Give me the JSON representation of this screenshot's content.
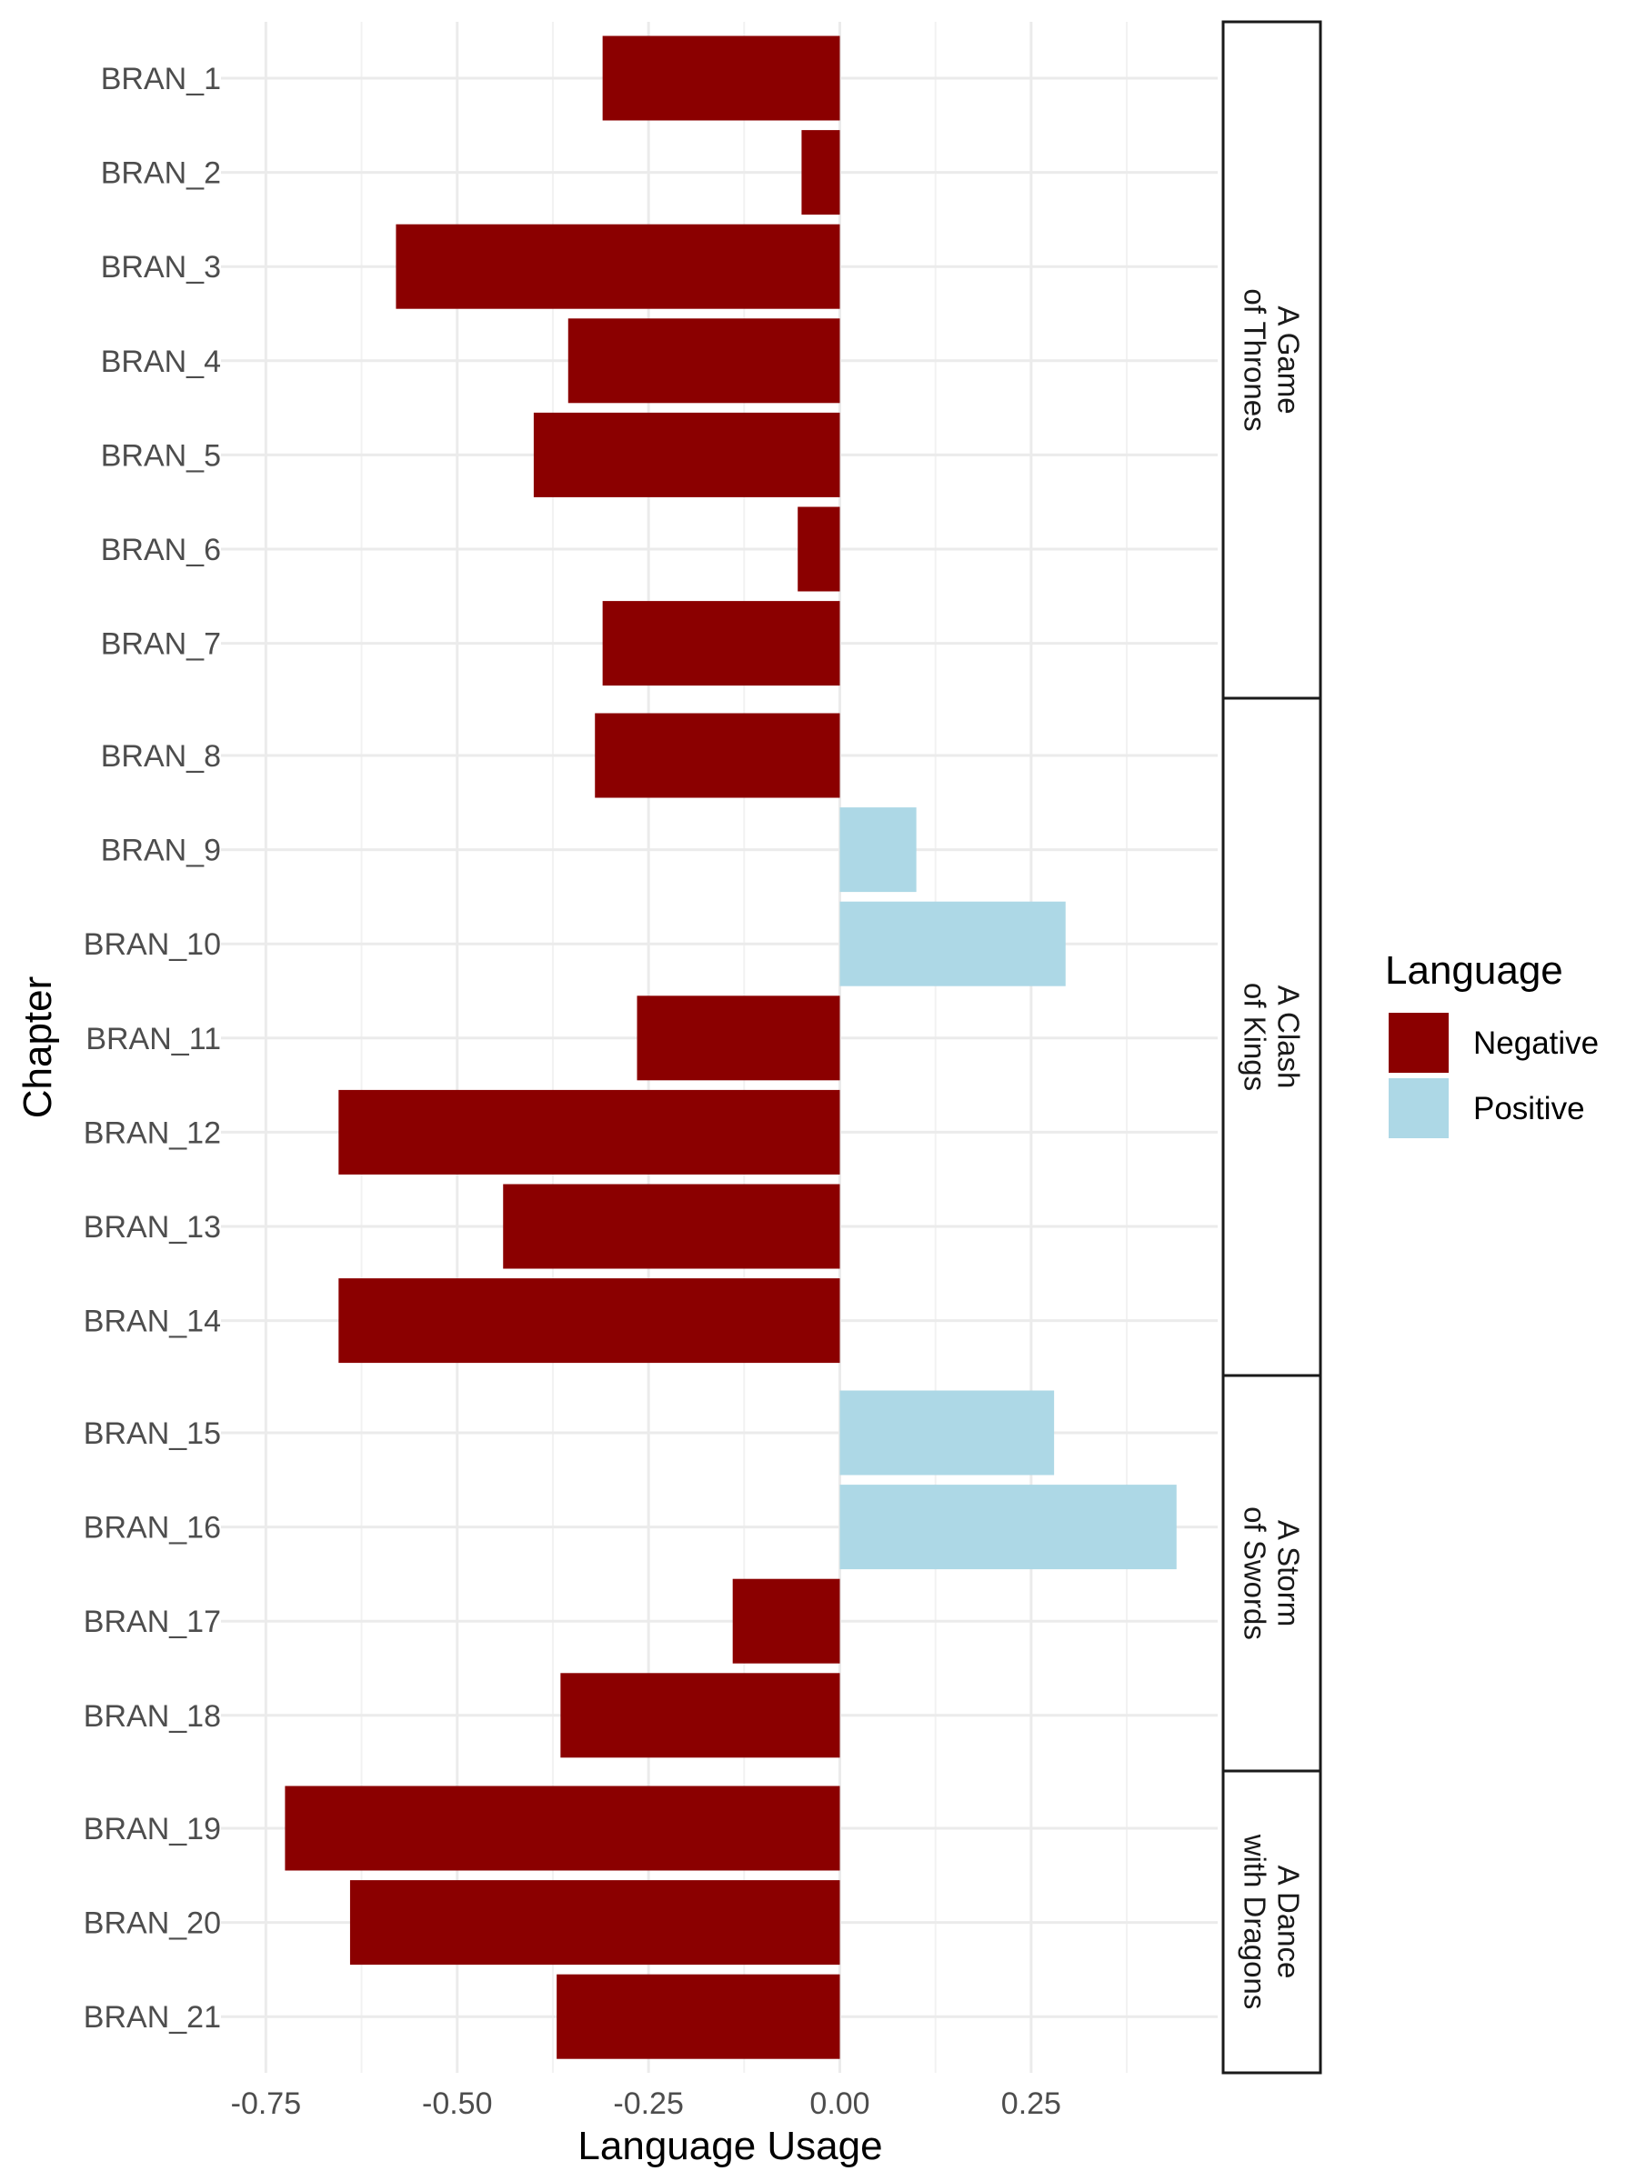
{
  "chart_data": {
    "type": "bar",
    "orientation": "horizontal",
    "xlabel": "Language Usage",
    "ylabel": "Chapter",
    "xlim": [
      -0.8,
      0.5
    ],
    "xticks": [
      -0.75,
      -0.5,
      -0.25,
      0.0,
      0.25
    ],
    "xtick_labels": [
      "-0.75",
      "-0.50",
      "-0.25",
      "0.00",
      "0.25"
    ],
    "grid": true,
    "legend": {
      "title": "Language",
      "position": "right",
      "entries": [
        {
          "label": "Negative",
          "color": "#8b0000"
        },
        {
          "label": "Positive",
          "color": "#add8e6"
        }
      ]
    },
    "facets": [
      {
        "label": [
          "A Game",
          "of Thrones"
        ],
        "chapters": [
          {
            "name": "BRAN_1",
            "value": -0.31
          },
          {
            "name": "BRAN_2",
            "value": -0.05
          },
          {
            "name": "BRAN_3",
            "value": -0.58
          },
          {
            "name": "BRAN_4",
            "value": -0.355
          },
          {
            "name": "BRAN_5",
            "value": -0.4
          },
          {
            "name": "BRAN_6",
            "value": -0.055
          },
          {
            "name": "BRAN_7",
            "value": -0.31
          }
        ]
      },
      {
        "label": [
          "A Clash",
          "of Kings"
        ],
        "chapters": [
          {
            "name": "BRAN_8",
            "value": -0.32
          },
          {
            "name": "BRAN_9",
            "value": 0.1
          },
          {
            "name": "BRAN_10",
            "value": 0.295
          },
          {
            "name": "BRAN_11",
            "value": -0.265
          },
          {
            "name": "BRAN_12",
            "value": -0.655
          },
          {
            "name": "BRAN_13",
            "value": -0.44
          },
          {
            "name": "BRAN_14",
            "value": -0.655
          }
        ]
      },
      {
        "label": [
          "A Storm",
          "of Swords"
        ],
        "chapters": [
          {
            "name": "BRAN_15",
            "value": 0.28
          },
          {
            "name": "BRAN_16",
            "value": 0.44
          },
          {
            "name": "BRAN_17",
            "value": -0.14
          },
          {
            "name": "BRAN_18",
            "value": -0.365
          }
        ]
      },
      {
        "label": [
          "A Dance",
          "with Dragons"
        ],
        "chapters": [
          {
            "name": "BRAN_19",
            "value": -0.725
          },
          {
            "name": "BRAN_20",
            "value": -0.64
          },
          {
            "name": "BRAN_21",
            "value": -0.37
          }
        ]
      }
    ]
  }
}
